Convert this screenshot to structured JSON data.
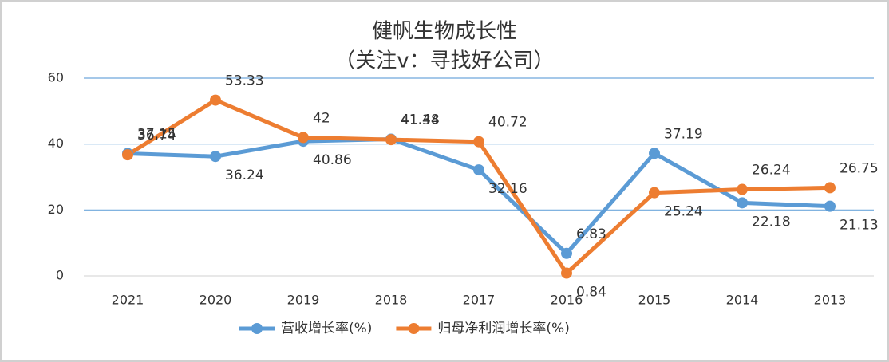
{
  "chart_data": {
    "type": "line",
    "title": "健帆生物成长性",
    "subtitle": "（关注v：寻找好公司）",
    "categories": [
      "2021",
      "2020",
      "2019",
      "2018",
      "2017",
      "2016",
      "2015",
      "2014",
      "2013"
    ],
    "series": [
      {
        "name": "营收增长率(%)",
        "color": "#5b9bd5",
        "values": [
          37.15,
          36.24,
          40.86,
          41.48,
          32.16,
          6.83,
          37.19,
          22.18,
          21.13
        ]
      },
      {
        "name": "归母净利润增长率(%)",
        "color": "#ed7d31",
        "values": [
          36.74,
          53.33,
          42,
          41.34,
          40.72,
          0.84,
          25.24,
          26.24,
          26.75
        ]
      }
    ],
    "ylim": [
      0,
      60
    ],
    "yticks": [
      0,
      20,
      40,
      60
    ],
    "grid": true,
    "legend": "bottom"
  }
}
